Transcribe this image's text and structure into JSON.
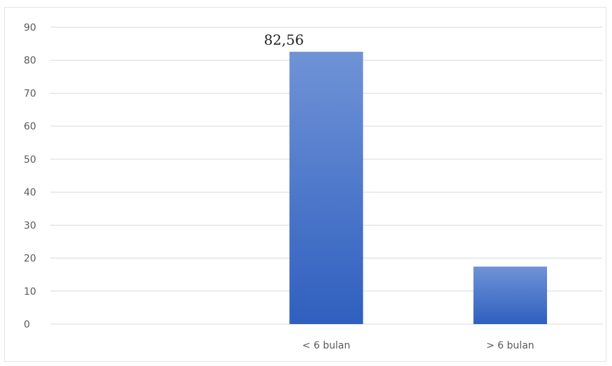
{
  "chart_data": {
    "type": "bar",
    "categories": [
      "",
      "< 6 bulan",
      "> 6 bulan"
    ],
    "values": [
      null,
      82.56,
      17.44
    ],
    "data_labels": [
      "",
      "82,56",
      ""
    ],
    "ylim": [
      0,
      90
    ],
    "y_ticks": [
      0,
      10,
      20,
      30,
      40,
      50,
      60,
      70,
      80,
      90
    ],
    "grid": true,
    "legend": "none",
    "bar_color": "#4472C4",
    "bar_color_top": "#6f93d6",
    "bar_color_bottom": "#2f5fbf",
    "grid_color": "#d9d9d9"
  }
}
